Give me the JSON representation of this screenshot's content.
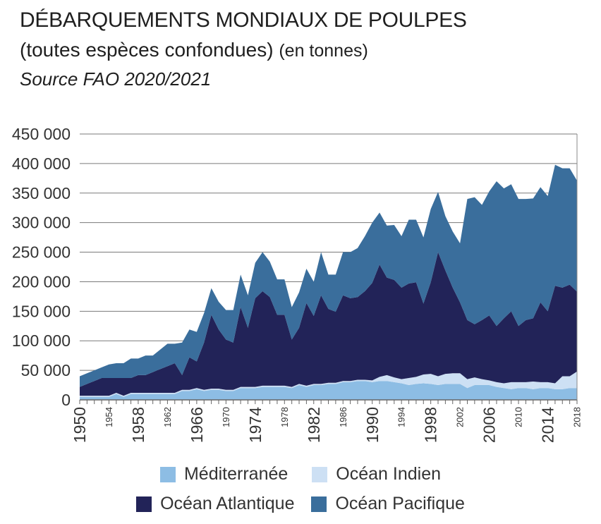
{
  "header": {
    "title": "DÉBARQUEMENTS MONDIAUX DE POULPES",
    "subtitle": "(toutes espèces confondues)",
    "unit": "(en tonnes)",
    "source": "Source FAO 2020/2021"
  },
  "chart_data": {
    "type": "area",
    "stacked": true,
    "ylim": [
      0,
      450000
    ],
    "yticks": [
      0,
      50000,
      100000,
      150000,
      200000,
      250000,
      300000,
      350000,
      400000,
      450000
    ],
    "ytick_labels": [
      "0",
      "50 000",
      "100 000",
      "150 000",
      "200 000",
      "250 000",
      "300 000",
      "350 000",
      "400 000",
      "450 000"
    ],
    "xticks_major": [
      1950,
      1958,
      1966,
      1974,
      1982,
      1990,
      1998,
      2006,
      2014
    ],
    "xticks_minor": [
      1954,
      1962,
      1970,
      1978,
      1986,
      1994,
      2002,
      2010,
      2018
    ],
    "grid": true,
    "legend_position": "bottom",
    "x": [
      1950,
      1951,
      1952,
      1953,
      1954,
      1955,
      1956,
      1957,
      1958,
      1959,
      1960,
      1961,
      1962,
      1963,
      1964,
      1965,
      1966,
      1967,
      1968,
      1969,
      1970,
      1971,
      1972,
      1973,
      1974,
      1975,
      1976,
      1977,
      1978,
      1979,
      1980,
      1981,
      1982,
      1983,
      1984,
      1985,
      1986,
      1987,
      1988,
      1989,
      1990,
      1991,
      1992,
      1993,
      1994,
      1995,
      1996,
      1997,
      1998,
      1999,
      2000,
      2001,
      2002,
      2003,
      2004,
      2005,
      2006,
      2007,
      2008,
      2009,
      2010,
      2011,
      2012,
      2013,
      2014,
      2015,
      2016,
      2017,
      2018
    ],
    "series": [
      {
        "name": "Méditerranée",
        "color": "#8dbde4",
        "values": [
          5000,
          5000,
          5000,
          5000,
          5000,
          10000,
          5000,
          10000,
          10000,
          10000,
          10000,
          10000,
          10000,
          10000,
          15000,
          15000,
          18000,
          15000,
          17000,
          17000,
          15000,
          15000,
          20000,
          20000,
          20000,
          22000,
          22000,
          22000,
          22000,
          20000,
          25000,
          22000,
          25000,
          25000,
          27000,
          27000,
          30000,
          30000,
          32000,
          32000,
          30000,
          32000,
          32000,
          30000,
          28000,
          25000,
          27000,
          28000,
          27000,
          25000,
          27000,
          27000,
          27000,
          20000,
          25000,
          25000,
          25000,
          22000,
          20000,
          18000,
          20000,
          20000,
          18000,
          20000,
          20000,
          18000,
          18000,
          20000,
          20000
        ]
      },
      {
        "name": "Océan Indien",
        "color": "#cde0f4",
        "values": [
          2000,
          2000,
          2000,
          2000,
          2000,
          2000,
          2000,
          2000,
          2000,
          2000,
          2000,
          2000,
          2000,
          2000,
          2000,
          2000,
          2000,
          2000,
          2000,
          2000,
          2000,
          2000,
          2000,
          2000,
          2000,
          2000,
          2000,
          2000,
          2000,
          2000,
          2000,
          2000,
          2000,
          2000,
          2000,
          2000,
          2000,
          2000,
          2000,
          2000,
          3000,
          7000,
          10000,
          8000,
          7000,
          12000,
          12000,
          15000,
          17000,
          15000,
          17000,
          18000,
          18000,
          15000,
          13000,
          10000,
          8000,
          8000,
          8000,
          12000,
          10000,
          10000,
          13000,
          10000,
          10000,
          10000,
          22000,
          20000,
          28000
        ]
      },
      {
        "name": "Océan Atlantique",
        "color": "#222358",
        "values": [
          15000,
          20000,
          25000,
          30000,
          30000,
          25000,
          30000,
          25000,
          30000,
          30000,
          35000,
          40000,
          45000,
          50000,
          25000,
          55000,
          45000,
          80000,
          125000,
          100000,
          85000,
          80000,
          135000,
          100000,
          150000,
          160000,
          150000,
          120000,
          120000,
          80000,
          95000,
          140000,
          115000,
          150000,
          125000,
          120000,
          145000,
          140000,
          140000,
          150000,
          165000,
          190000,
          165000,
          165000,
          155000,
          160000,
          160000,
          120000,
          155000,
          210000,
          175000,
          145000,
          120000,
          100000,
          90000,
          100000,
          110000,
          95000,
          110000,
          120000,
          95000,
          105000,
          107000,
          135000,
          120000,
          165000,
          150000,
          155000,
          135000
        ]
      },
      {
        "name": "Océan Pacifique",
        "color": "#3a6e9c",
        "values": [
          18000,
          18000,
          18000,
          18000,
          23000,
          25000,
          25000,
          33000,
          28000,
          33000,
          28000,
          33000,
          38000,
          33000,
          55000,
          47000,
          50000,
          50000,
          45000,
          47000,
          50000,
          55000,
          55000,
          55000,
          60000,
          66000,
          60000,
          60000,
          60000,
          55000,
          60000,
          58000,
          58000,
          73000,
          58000,
          63000,
          73000,
          78000,
          83000,
          93000,
          102000,
          88000,
          88000,
          93000,
          87000,
          108000,
          106000,
          112000,
          124000,
          102000,
          92000,
          95000,
          100000,
          205000,
          215000,
          195000,
          210000,
          245000,
          220000,
          215000,
          215000,
          205000,
          203000,
          195000,
          195000,
          205000,
          202000,
          197000,
          188000
        ]
      }
    ]
  }
}
